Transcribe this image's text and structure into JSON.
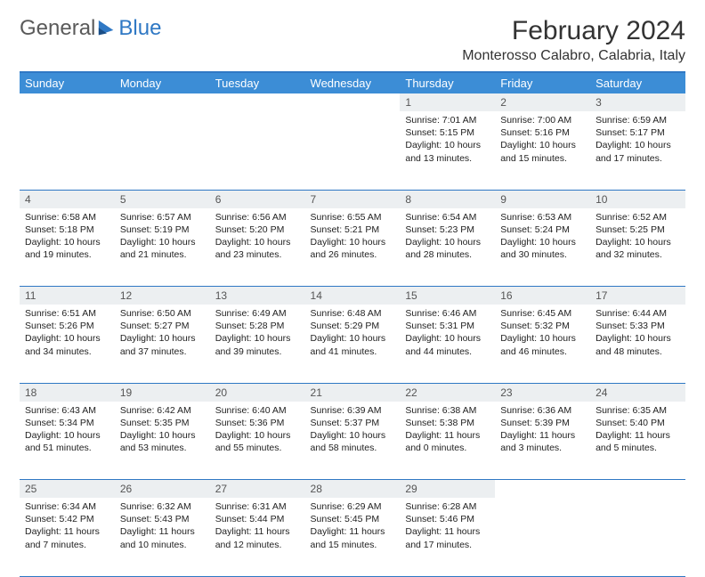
{
  "logo": {
    "text1": "General",
    "text2": "Blue"
  },
  "title": "February 2024",
  "location": "Monterosso Calabro, Calabria, Italy",
  "weekdays": [
    "Sunday",
    "Monday",
    "Tuesday",
    "Wednesday",
    "Thursday",
    "Friday",
    "Saturday"
  ],
  "colors": {
    "header_bg": "#3c8dd6",
    "header_text": "#ffffff",
    "border": "#2f78c4",
    "daynum_bg": "#eceff1",
    "logo_blue": "#2f78c4",
    "logo_gray": "#5a5a5a"
  },
  "weeks": [
    [
      null,
      null,
      null,
      null,
      {
        "n": "1",
        "sr": "Sunrise: 7:01 AM",
        "ss": "Sunset: 5:15 PM",
        "d1": "Daylight: 10 hours",
        "d2": "and 13 minutes."
      },
      {
        "n": "2",
        "sr": "Sunrise: 7:00 AM",
        "ss": "Sunset: 5:16 PM",
        "d1": "Daylight: 10 hours",
        "d2": "and 15 minutes."
      },
      {
        "n": "3",
        "sr": "Sunrise: 6:59 AM",
        "ss": "Sunset: 5:17 PM",
        "d1": "Daylight: 10 hours",
        "d2": "and 17 minutes."
      }
    ],
    [
      {
        "n": "4",
        "sr": "Sunrise: 6:58 AM",
        "ss": "Sunset: 5:18 PM",
        "d1": "Daylight: 10 hours",
        "d2": "and 19 minutes."
      },
      {
        "n": "5",
        "sr": "Sunrise: 6:57 AM",
        "ss": "Sunset: 5:19 PM",
        "d1": "Daylight: 10 hours",
        "d2": "and 21 minutes."
      },
      {
        "n": "6",
        "sr": "Sunrise: 6:56 AM",
        "ss": "Sunset: 5:20 PM",
        "d1": "Daylight: 10 hours",
        "d2": "and 23 minutes."
      },
      {
        "n": "7",
        "sr": "Sunrise: 6:55 AM",
        "ss": "Sunset: 5:21 PM",
        "d1": "Daylight: 10 hours",
        "d2": "and 26 minutes."
      },
      {
        "n": "8",
        "sr": "Sunrise: 6:54 AM",
        "ss": "Sunset: 5:23 PM",
        "d1": "Daylight: 10 hours",
        "d2": "and 28 minutes."
      },
      {
        "n": "9",
        "sr": "Sunrise: 6:53 AM",
        "ss": "Sunset: 5:24 PM",
        "d1": "Daylight: 10 hours",
        "d2": "and 30 minutes."
      },
      {
        "n": "10",
        "sr": "Sunrise: 6:52 AM",
        "ss": "Sunset: 5:25 PM",
        "d1": "Daylight: 10 hours",
        "d2": "and 32 minutes."
      }
    ],
    [
      {
        "n": "11",
        "sr": "Sunrise: 6:51 AM",
        "ss": "Sunset: 5:26 PM",
        "d1": "Daylight: 10 hours",
        "d2": "and 34 minutes."
      },
      {
        "n": "12",
        "sr": "Sunrise: 6:50 AM",
        "ss": "Sunset: 5:27 PM",
        "d1": "Daylight: 10 hours",
        "d2": "and 37 minutes."
      },
      {
        "n": "13",
        "sr": "Sunrise: 6:49 AM",
        "ss": "Sunset: 5:28 PM",
        "d1": "Daylight: 10 hours",
        "d2": "and 39 minutes."
      },
      {
        "n": "14",
        "sr": "Sunrise: 6:48 AM",
        "ss": "Sunset: 5:29 PM",
        "d1": "Daylight: 10 hours",
        "d2": "and 41 minutes."
      },
      {
        "n": "15",
        "sr": "Sunrise: 6:46 AM",
        "ss": "Sunset: 5:31 PM",
        "d1": "Daylight: 10 hours",
        "d2": "and 44 minutes."
      },
      {
        "n": "16",
        "sr": "Sunrise: 6:45 AM",
        "ss": "Sunset: 5:32 PM",
        "d1": "Daylight: 10 hours",
        "d2": "and 46 minutes."
      },
      {
        "n": "17",
        "sr": "Sunrise: 6:44 AM",
        "ss": "Sunset: 5:33 PM",
        "d1": "Daylight: 10 hours",
        "d2": "and 48 minutes."
      }
    ],
    [
      {
        "n": "18",
        "sr": "Sunrise: 6:43 AM",
        "ss": "Sunset: 5:34 PM",
        "d1": "Daylight: 10 hours",
        "d2": "and 51 minutes."
      },
      {
        "n": "19",
        "sr": "Sunrise: 6:42 AM",
        "ss": "Sunset: 5:35 PM",
        "d1": "Daylight: 10 hours",
        "d2": "and 53 minutes."
      },
      {
        "n": "20",
        "sr": "Sunrise: 6:40 AM",
        "ss": "Sunset: 5:36 PM",
        "d1": "Daylight: 10 hours",
        "d2": "and 55 minutes."
      },
      {
        "n": "21",
        "sr": "Sunrise: 6:39 AM",
        "ss": "Sunset: 5:37 PM",
        "d1": "Daylight: 10 hours",
        "d2": "and 58 minutes."
      },
      {
        "n": "22",
        "sr": "Sunrise: 6:38 AM",
        "ss": "Sunset: 5:38 PM",
        "d1": "Daylight: 11 hours",
        "d2": "and 0 minutes."
      },
      {
        "n": "23",
        "sr": "Sunrise: 6:36 AM",
        "ss": "Sunset: 5:39 PM",
        "d1": "Daylight: 11 hours",
        "d2": "and 3 minutes."
      },
      {
        "n": "24",
        "sr": "Sunrise: 6:35 AM",
        "ss": "Sunset: 5:40 PM",
        "d1": "Daylight: 11 hours",
        "d2": "and 5 minutes."
      }
    ],
    [
      {
        "n": "25",
        "sr": "Sunrise: 6:34 AM",
        "ss": "Sunset: 5:42 PM",
        "d1": "Daylight: 11 hours",
        "d2": "and 7 minutes."
      },
      {
        "n": "26",
        "sr": "Sunrise: 6:32 AM",
        "ss": "Sunset: 5:43 PM",
        "d1": "Daylight: 11 hours",
        "d2": "and 10 minutes."
      },
      {
        "n": "27",
        "sr": "Sunrise: 6:31 AM",
        "ss": "Sunset: 5:44 PM",
        "d1": "Daylight: 11 hours",
        "d2": "and 12 minutes."
      },
      {
        "n": "28",
        "sr": "Sunrise: 6:29 AM",
        "ss": "Sunset: 5:45 PM",
        "d1": "Daylight: 11 hours",
        "d2": "and 15 minutes."
      },
      {
        "n": "29",
        "sr": "Sunrise: 6:28 AM",
        "ss": "Sunset: 5:46 PM",
        "d1": "Daylight: 11 hours",
        "d2": "and 17 minutes."
      },
      null,
      null
    ]
  ]
}
